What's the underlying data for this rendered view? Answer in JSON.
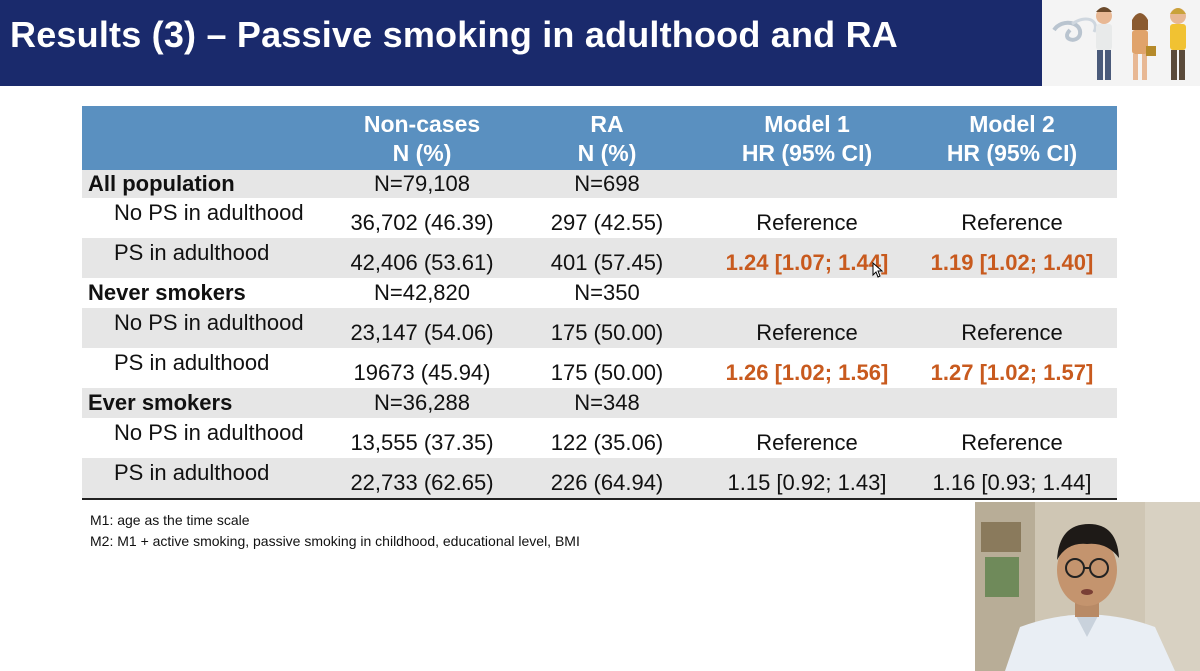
{
  "slide": {
    "title": "Results (3) – Passive smoking in adulthood and RA"
  },
  "table": {
    "headers": [
      {
        "line1": "",
        "line2": ""
      },
      {
        "line1": "Non-cases",
        "line2": "N (%)"
      },
      {
        "line1": "RA",
        "line2": "N (%)"
      },
      {
        "line1": "Model 1",
        "line2": "HR (95% CI)"
      },
      {
        "line1": "Model 2",
        "line2": "HR (95% CI)"
      }
    ],
    "rows": [
      {
        "label": "All population",
        "noncases": "N=79,108",
        "ra": "N=698",
        "m1": "",
        "m2": ""
      },
      {
        "label": "No PS in adulthood",
        "noncases": "36,702 (46.39)",
        "ra": "297 (42.55)",
        "m1": "Reference",
        "m2": "Reference"
      },
      {
        "label": "PS in adulthood",
        "noncases": "42,406 (53.61)",
        "ra": "401 (57.45)",
        "m1": "1.24 [1.07; 1.44]",
        "m2": "1.19 [1.02; 1.40]"
      },
      {
        "label": "Never smokers",
        "noncases": "N=42,820",
        "ra": "N=350",
        "m1": "",
        "m2": ""
      },
      {
        "label": "No PS in adulthood",
        "noncases": "23,147 (54.06)",
        "ra": "175 (50.00)",
        "m1": "Reference",
        "m2": "Reference"
      },
      {
        "label": "PS in adulthood",
        "noncases": "19673 (45.94)",
        "ra": "175 (50.00)",
        "m1": "1.26 [1.02; 1.56]",
        "m2": "1.27 [1.02; 1.57]"
      },
      {
        "label": "Ever smokers",
        "noncases": "N=36,288",
        "ra": "N=348",
        "m1": "",
        "m2": ""
      },
      {
        "label": "No PS in adulthood",
        "noncases": "13,555 (37.35)",
        "ra": "122 (35.06)",
        "m1": "Reference",
        "m2": "Reference"
      },
      {
        "label": "PS in adulthood",
        "noncases": "22,733 (62.65)",
        "ra": "226 (64.94)",
        "m1": "1.15 [0.92; 1.43]",
        "m2": "1.16 [0.93; 1.44]"
      }
    ]
  },
  "notes": {
    "m1": "M1: age as the time scale",
    "m2": "M2: M1 + active smoking, passive smoking in childhood, educational level, BMI"
  },
  "colors": {
    "title_bg": "#1a2a6c",
    "header_bg": "#5a90c0",
    "row_shade": "#e6e6e6",
    "significant": "#c85a1e"
  },
  "icons": {
    "clipart": "smokers-illustration",
    "webcam": "presenter-webcam",
    "cursor": "mouse-cursor-icon"
  }
}
